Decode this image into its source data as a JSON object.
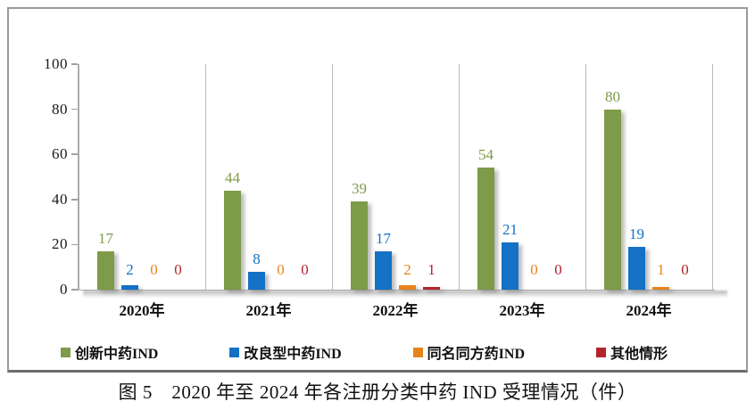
{
  "figure": {
    "caption": "图 5　2020 年至 2024 年各注册分类中药 IND 受理情况（件）"
  },
  "chart_data": {
    "type": "bar",
    "title": "",
    "xlabel": "",
    "ylabel": "",
    "categories": [
      "2020年",
      "2021年",
      "2022年",
      "2023年",
      "2024年"
    ],
    "series": [
      {
        "name": "创新中药IND",
        "color": "#7D9B49",
        "values": [
          17,
          44,
          39,
          54,
          80
        ]
      },
      {
        "name": "改良型中药IND",
        "color": "#1471C5",
        "values": [
          2,
          8,
          17,
          21,
          19
        ]
      },
      {
        "name": "同名同方药IND",
        "color": "#E8831C",
        "values": [
          0,
          0,
          2,
          0,
          1
        ]
      },
      {
        "name": "其他情形",
        "color": "#B3242E",
        "values": [
          0,
          0,
          1,
          0,
          0
        ]
      }
    ],
    "ylim": [
      0,
      100
    ],
    "yticks": [
      0,
      20,
      40,
      60,
      80,
      100
    ],
    "grid": "vertical-category-separators",
    "legend_position": "bottom",
    "data_labels": true
  }
}
